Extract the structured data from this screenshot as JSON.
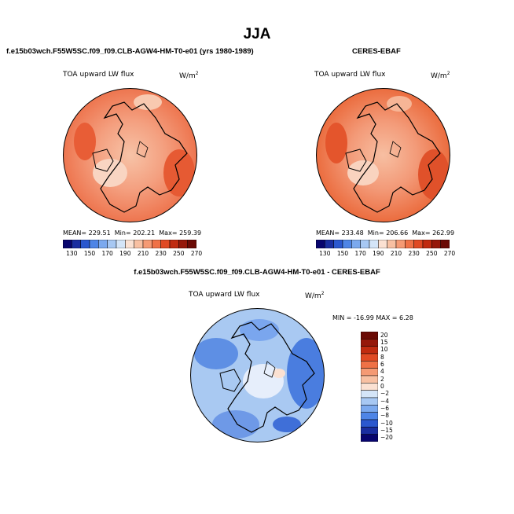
{
  "figure": {
    "title": "JJA",
    "panels": [
      {
        "id": "model",
        "header": "f.e15b03wch.F55W5SC.f09_f09.CLB-AGW4-HM-T0-e01 (yrs 1980-1989)",
        "variable_label": "TOA upward LW flux",
        "units_base": "W/m",
        "units_exp": "2",
        "mean_label": "MEAN= 229.51",
        "min_label": "Min= 202.21",
        "max_label": "Max= 259.39",
        "colorbar_ticks": [
          "130",
          "150",
          "170",
          "190",
          "210",
          "230",
          "250",
          "270"
        ]
      },
      {
        "id": "obs",
        "header": "CERES-EBAF",
        "variable_label": "TOA upward LW flux",
        "units_base": "W/m",
        "units_exp": "2",
        "mean_label": "MEAN= 233.48",
        "min_label": "Min= 206.66",
        "max_label": "Max= 262.99",
        "colorbar_ticks": [
          "130",
          "150",
          "170",
          "190",
          "210",
          "230",
          "250",
          "270"
        ]
      },
      {
        "id": "diff",
        "header": "f.e15b03wch.F55W5SC.f09_f09.CLB-AGW4-HM-T0-e01 - CERES-EBAF",
        "variable_label": "TOA upward LW flux",
        "units_base": "W/m",
        "units_exp": "2",
        "minmax_label": "MIN = -16.99 MAX =   6.28",
        "colorbar_ticks": [
          "20",
          "15",
          "10",
          "8",
          "6",
          "4",
          "2",
          "0",
          "−2",
          "−4",
          "−6",
          "−8",
          "−10",
          "−15",
          "−20"
        ]
      }
    ],
    "colors": {
      "abs_scale": [
        "#08056e",
        "#1a2ea0",
        "#2b58cf",
        "#4e85e6",
        "#7ba9ee",
        "#a7c8f3",
        "#d4e5f8",
        "#fbe1d2",
        "#f8c0a2",
        "#f59a74",
        "#ef7146",
        "#e04a24",
        "#c02b10",
        "#96180a",
        "#6b0a05"
      ],
      "diff_scale": [
        "#6b0a05",
        "#96180a",
        "#c02b10",
        "#e04a24",
        "#ef7146",
        "#f59a74",
        "#f8c0a2",
        "#fbe1d2",
        "#d4e5f8",
        "#a7c8f3",
        "#7ba9ee",
        "#4e85e6",
        "#2b58cf",
        "#1a2ea0",
        "#08056e"
      ],
      "abs_map_base": "#f08a64",
      "diff_map_base": "#8fb6ee"
    }
  }
}
